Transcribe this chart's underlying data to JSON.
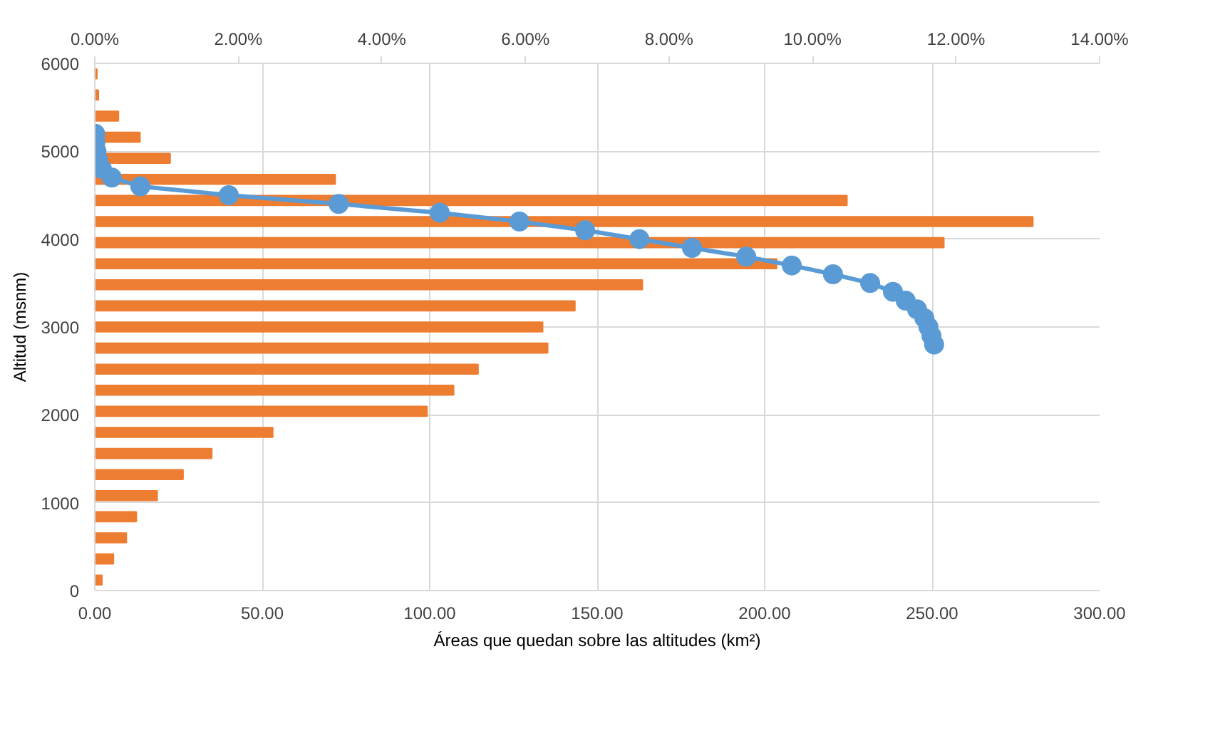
{
  "chart_data": {
    "type": "bar",
    "orientation": "horizontal",
    "xlabel": "Áreas que quedan sobre las altitudes (km²)",
    "ylabel": "Altitud (msnm)",
    "xlim": [
      0,
      300
    ],
    "xticks": [
      {
        "value": 0,
        "label": "0.00"
      },
      {
        "value": 50,
        "label": "50.00"
      },
      {
        "value": 100,
        "label": "100.00"
      },
      {
        "value": 150,
        "label": "150.00"
      },
      {
        "value": 200,
        "label": "200.00"
      },
      {
        "value": 250,
        "label": "250.00"
      },
      {
        "value": 300,
        "label": "300.00"
      }
    ],
    "x2lim": [
      0,
      14
    ],
    "x2ticks": [
      {
        "value": 0,
        "label": "0.00%"
      },
      {
        "value": 2,
        "label": "2.00%"
      },
      {
        "value": 4,
        "label": "4.00%"
      },
      {
        "value": 6,
        "label": "6.00%"
      },
      {
        "value": 8,
        "label": "8.00%"
      },
      {
        "value": 10,
        "label": "10.00%"
      },
      {
        "value": 12,
        "label": "12.00%"
      },
      {
        "value": 14,
        "label": "14.00%"
      }
    ],
    "ylim": [
      0,
      6000
    ],
    "yticks": [
      0,
      1000,
      2000,
      3000,
      4000,
      5000,
      6000
    ],
    "grid": true,
    "series": [
      {
        "axis": "x2",
        "color": "#ed7d31",
        "x": [
          120,
          360,
          600,
          840,
          1080,
          1320,
          1560,
          1800,
          2040,
          2280,
          2520,
          2760,
          3000,
          3240,
          3480,
          3720,
          3960,
          4200,
          4440,
          4680,
          4920,
          5160,
          5400,
          5640,
          5880
        ],
        "values": [
          0.1,
          0.26,
          0.44,
          0.58,
          0.87,
          1.23,
          1.63,
          2.48,
          4.63,
          5.0,
          5.34,
          6.31,
          6.24,
          6.69,
          7.63,
          9.5,
          11.83,
          13.07,
          10.48,
          3.35,
          1.05,
          0.63,
          0.33,
          0.05,
          0.03
        ]
      },
      {
        "type": "line",
        "color": "#5b9bd5",
        "marker": "circle",
        "line_style": "solid",
        "x": [
          2800,
          2900,
          3000,
          3100,
          3200,
          3300,
          3400,
          3500,
          3600,
          3700,
          3800,
          3900,
          4000,
          4100,
          4200,
          4300,
          4400,
          4500,
          4600,
          4700,
          4800,
          4900,
          5000,
          5100,
          5200
        ],
        "values": [
          250.6,
          249.8,
          248.9,
          247.7,
          245.5,
          242.1,
          238.3,
          231.5,
          220.4,
          208.1,
          194.5,
          178.3,
          162.6,
          146.4,
          126.8,
          103.0,
          72.8,
          40.0,
          13.6,
          5.1,
          2.1,
          1.0,
          0.5,
          0.2,
          0.1
        ]
      }
    ]
  }
}
